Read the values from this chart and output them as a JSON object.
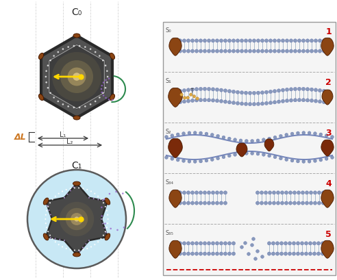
{
  "bg_color": "#ffffff",
  "brown_color": "#8B4513",
  "blue_fill": "#c8e8f5",
  "green_circle": "#2d8a4e",
  "yellow_arrow": "#FFD700",
  "orange_label": "#CC7722",
  "red_label": "#cc0000",
  "dashed_red": "#cc0000",
  "title_C0": "C₀",
  "title_C1": "C₁",
  "label_deltaL": "ΔL",
  "label_L1": "L₁",
  "label_L2": "L₂",
  "figsize": [
    4.92,
    4.09
  ],
  "dpi": 100
}
